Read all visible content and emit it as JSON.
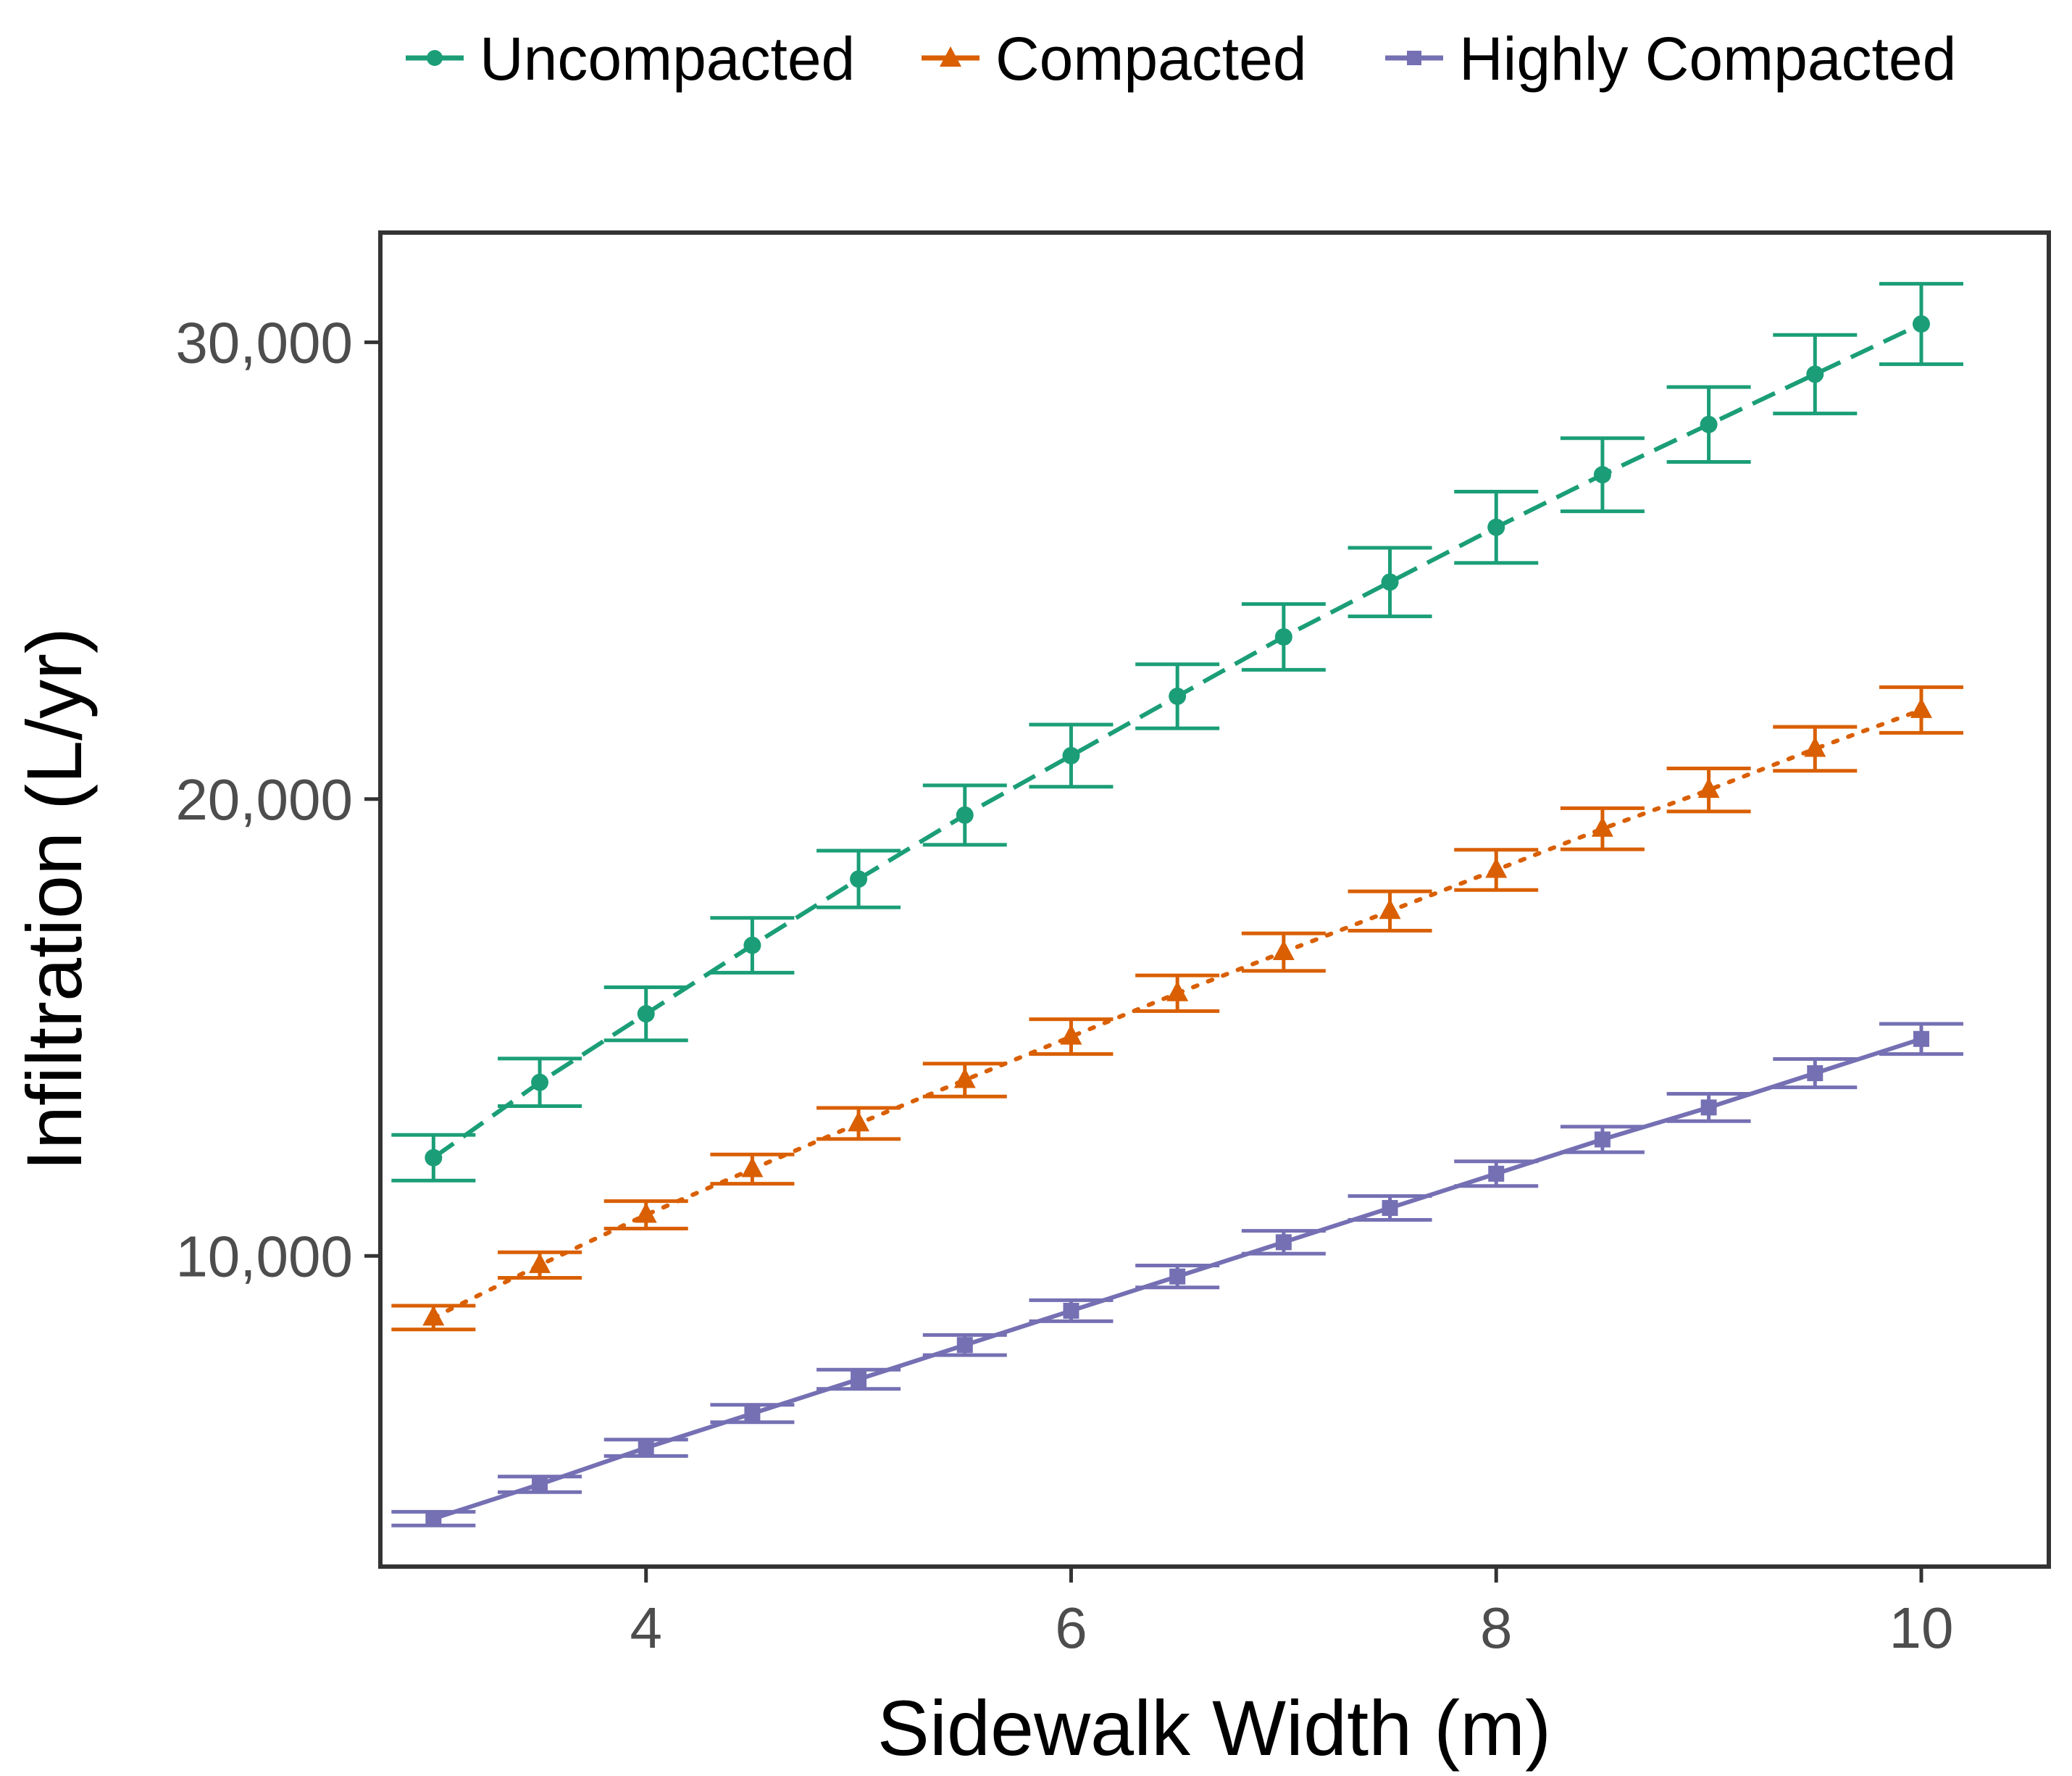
{
  "chart_data": {
    "type": "line",
    "title": "",
    "xlabel": "Sidewalk Width (m)",
    "ylabel": "Infiltration (L/yr)",
    "xlim": [
      2.75,
      10.6
    ],
    "ylim": [
      3200,
      32400
    ],
    "x_ticks": [
      {
        "value": 4,
        "label": "4"
      },
      {
        "value": 6,
        "label": "6"
      },
      {
        "value": 8,
        "label": "8"
      },
      {
        "value": 10,
        "label": "10"
      }
    ],
    "y_ticks": [
      {
        "value": 10000,
        "label": "10,000"
      },
      {
        "value": 20000,
        "label": "20,000"
      },
      {
        "value": 30000,
        "label": "30,000"
      }
    ],
    "grid": false,
    "legend_position": "top",
    "x": [
      3,
      3.5,
      4,
      4.5,
      5,
      5.5,
      6,
      6.5,
      7,
      7.5,
      8,
      8.5,
      9,
      9.5,
      10
    ],
    "series": [
      {
        "name": "Uncompacted",
        "color": "#1b9e77",
        "marker": "circle",
        "line_style": "dashed",
        "values": [
          12150,
          13800,
          15300,
          16800,
          18250,
          19650,
          20950,
          22250,
          23550,
          24750,
          25950,
          27100,
          28200,
          29300,
          30400
        ],
        "error": [
          500,
          520,
          580,
          600,
          620,
          650,
          680,
          700,
          720,
          750,
          780,
          800,
          820,
          860,
          880
        ]
      },
      {
        "name": "Compacted",
        "color": "#d95f02",
        "marker": "triangle",
        "line_style": "dotted",
        "values": [
          8650,
          9800,
          10900,
          11900,
          12900,
          13850,
          14800,
          15750,
          16650,
          17550,
          18450,
          19350,
          20200,
          21100,
          21950
        ],
        "error": [
          260,
          280,
          300,
          320,
          340,
          360,
          380,
          390,
          410,
          430,
          440,
          450,
          470,
          480,
          500
        ]
      },
      {
        "name": "Highly Compacted",
        "color": "#7570b3",
        "marker": "square",
        "line_style": "solid",
        "values": [
          4250,
          5000,
          5800,
          6550,
          7300,
          8050,
          8800,
          9550,
          10300,
          11050,
          11800,
          12550,
          13250,
          14000,
          14750
        ],
        "error": [
          150,
          170,
          180,
          190,
          210,
          220,
          230,
          240,
          250,
          260,
          270,
          280,
          300,
          310,
          330
        ]
      }
    ]
  }
}
